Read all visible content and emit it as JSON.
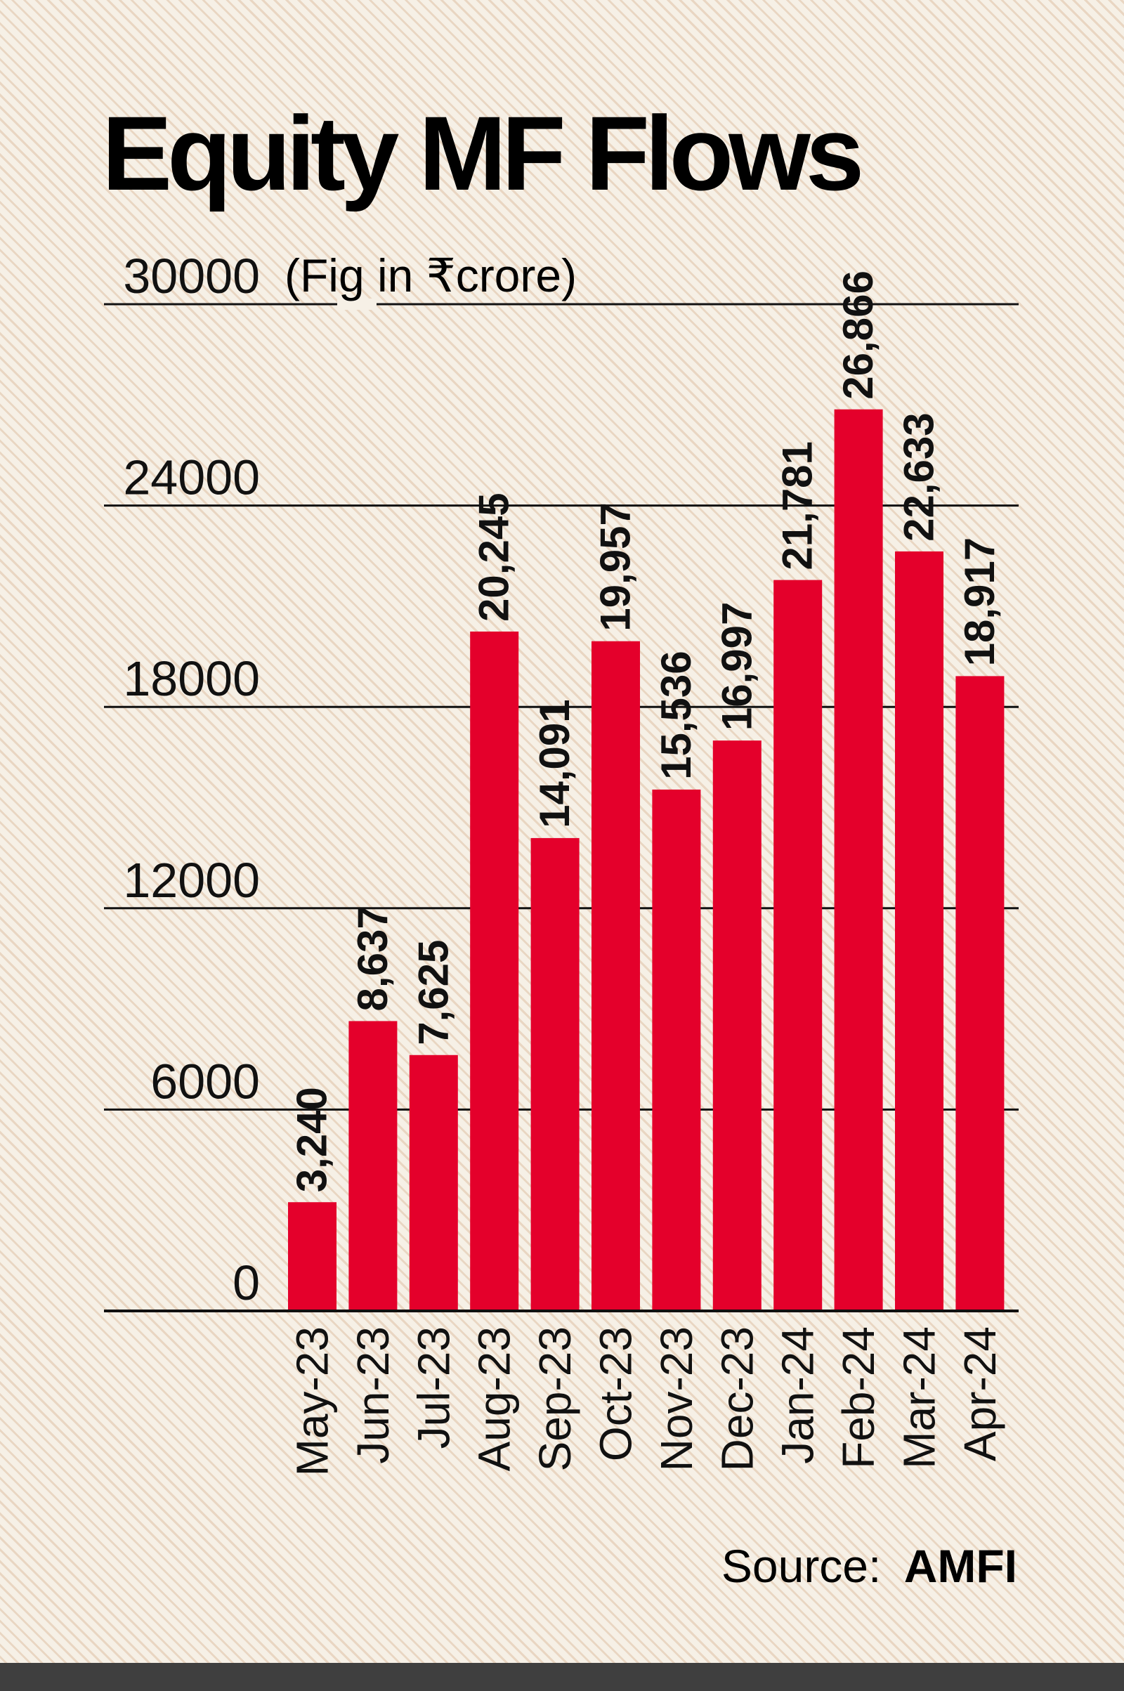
{
  "colors": {
    "bar": "#e4002b",
    "ink": "#111111",
    "background": "#f6f0e6"
  },
  "chart_data": {
    "type": "bar",
    "title": "Equity MF Flows",
    "unit_note": "(Fig in ₹crore)",
    "categories": [
      "May-23",
      "Jun-23",
      "Jul-23",
      "Aug-23",
      "Sep-23",
      "Oct-23",
      "Nov-23",
      "Dec-23",
      "Jan-24",
      "Feb-24",
      "Mar-24",
      "Apr-24"
    ],
    "values": [
      3240,
      8637,
      7625,
      20245,
      14091,
      19957,
      15536,
      16997,
      21781,
      26866,
      22633,
      18917
    ],
    "value_labels": [
      "3,240",
      "8,637",
      "7,625",
      "20,245",
      "14,091",
      "19,957",
      "15,536",
      "16,997",
      "21,781",
      "26,866",
      "22,633",
      "18,917"
    ],
    "yticks": [
      0,
      6000,
      12000,
      18000,
      24000,
      30000
    ],
    "ytick_labels": [
      "0",
      "6000",
      "12000",
      "18000",
      "24000",
      "30000"
    ],
    "ylim": [
      0,
      30000
    ],
    "grid": true,
    "xlabel": "",
    "ylabel": "",
    "source_prefix": "Source:",
    "source_name": "AMFI"
  }
}
